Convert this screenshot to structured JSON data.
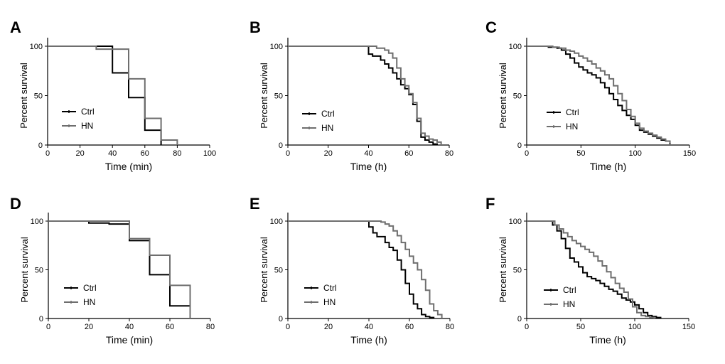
{
  "colors": {
    "ctrl": "#000000",
    "hn": "#6e6e6e",
    "axis": "#000000"
  },
  "chart_data": [
    {
      "type": "line",
      "subtype": "kaplan-meier-step",
      "panel": "A",
      "xlabel": "Time (min)",
      "ylabel": "Percent survival",
      "xlim": [
        0,
        100
      ],
      "ylim": [
        0,
        100
      ],
      "xticks": [
        0,
        20,
        40,
        60,
        80,
        100
      ],
      "yticks": [
        0,
        50,
        100
      ],
      "legend": [
        "Ctrl",
        "HN"
      ],
      "legend_position": "lower-left",
      "series": [
        {
          "name": "Ctrl",
          "x": [
            0,
            40,
            50,
            60,
            70
          ],
          "y": [
            100,
            73,
            48,
            15,
            0
          ]
        },
        {
          "name": "HN",
          "x": [
            0,
            30,
            50,
            60,
            70,
            80
          ],
          "y": [
            100,
            97,
            67,
            27,
            5,
            0
          ]
        }
      ]
    },
    {
      "type": "line",
      "subtype": "kaplan-meier-step",
      "panel": "B",
      "xlabel": "Time (h)",
      "ylabel": "Percent survival",
      "xlim": [
        0,
        80
      ],
      "ylim": [
        0,
        100
      ],
      "xticks": [
        0,
        20,
        40,
        60,
        80
      ],
      "yticks": [
        0,
        50,
        100
      ],
      "legend": [
        "Ctrl",
        "HN"
      ],
      "legend_position": "lower-left",
      "series": [
        {
          "name": "Ctrl",
          "x": [
            0,
            40,
            42,
            46,
            48,
            50,
            52,
            54,
            56,
            58,
            60,
            62,
            64,
            66,
            68,
            70,
            72,
            74
          ],
          "y": [
            100,
            92,
            90,
            86,
            82,
            78,
            73,
            67,
            61,
            57,
            51,
            41,
            24,
            8,
            5,
            3,
            1,
            0
          ]
        },
        {
          "name": "HN",
          "x": [
            0,
            44,
            48,
            50,
            52,
            54,
            56,
            58,
            60,
            62,
            64,
            66,
            68,
            70,
            72,
            74,
            76
          ],
          "y": [
            100,
            98,
            96,
            93,
            88,
            78,
            67,
            60,
            52,
            43,
            27,
            12,
            9,
            6,
            5,
            3,
            0
          ]
        }
      ]
    },
    {
      "type": "line",
      "subtype": "kaplan-meier-step",
      "panel": "C",
      "xlabel": "Time (h)",
      "ylabel": "Percent survival",
      "xlim": [
        0,
        150
      ],
      "ylim": [
        0,
        100
      ],
      "xticks": [
        0,
        50,
        100,
        150
      ],
      "yticks": [
        0,
        50,
        100
      ],
      "legend": [
        "Ctrl",
        "HN"
      ],
      "legend_position": "lower-left",
      "series": [
        {
          "name": "Ctrl",
          "x": [
            0,
            20,
            28,
            32,
            36,
            40,
            44,
            48,
            52,
            56,
            60,
            64,
            68,
            72,
            76,
            80,
            84,
            88,
            92,
            96,
            100,
            104,
            108,
            112,
            116,
            120,
            124,
            128,
            132
          ],
          "y": [
            100,
            99,
            98,
            96,
            92,
            88,
            83,
            79,
            76,
            73,
            71,
            68,
            63,
            58,
            52,
            46,
            40,
            35,
            30,
            26,
            20,
            15,
            13,
            11,
            9,
            7,
            5,
            4,
            1
          ]
        },
        {
          "name": "HN",
          "x": [
            0,
            24,
            30,
            36,
            40,
            44,
            48,
            52,
            56,
            60,
            64,
            68,
            72,
            76,
            80,
            84,
            88,
            92,
            96,
            100,
            104,
            108,
            112,
            116,
            120,
            124,
            128,
            132
          ],
          "y": [
            100,
            99,
            98,
            96,
            95,
            93,
            90,
            88,
            85,
            82,
            78,
            75,
            71,
            67,
            60,
            52,
            45,
            36,
            29,
            22,
            17,
            14,
            12,
            10,
            8,
            6,
            4,
            2
          ]
        }
      ]
    },
    {
      "type": "line",
      "subtype": "kaplan-meier-step",
      "panel": "D",
      "xlabel": "Time (min)",
      "ylabel": "Percent survival",
      "xlim": [
        0,
        80
      ],
      "ylim": [
        0,
        100
      ],
      "xticks": [
        0,
        20,
        40,
        60,
        80
      ],
      "yticks": [
        0,
        50,
        100
      ],
      "legend": [
        "Ctrl",
        "HN"
      ],
      "legend_position": "lower-left",
      "series": [
        {
          "name": "Ctrl",
          "x": [
            0,
            20,
            30,
            40,
            50,
            60,
            70
          ],
          "y": [
            100,
            98,
            97,
            80,
            45,
            13,
            0
          ]
        },
        {
          "name": "HN",
          "x": [
            0,
            40,
            50,
            60,
            70
          ],
          "y": [
            100,
            82,
            65,
            34,
            0
          ]
        }
      ]
    },
    {
      "type": "line",
      "subtype": "kaplan-meier-step",
      "panel": "E",
      "xlabel": "Time (h)",
      "ylabel": "Percent survival",
      "xlim": [
        0,
        80
      ],
      "ylim": [
        0,
        100
      ],
      "xticks": [
        0,
        20,
        40,
        60,
        80
      ],
      "yticks": [
        0,
        50,
        100
      ],
      "legend": [
        "Ctrl",
        "HN"
      ],
      "legend_position": "lower-left",
      "series": [
        {
          "name": "Ctrl",
          "x": [
            0,
            40,
            42,
            44,
            48,
            50,
            52,
            54,
            56,
            58,
            60,
            62,
            64,
            66,
            68,
            70,
            72
          ],
          "y": [
            100,
            94,
            88,
            84,
            78,
            73,
            70,
            60,
            50,
            36,
            25,
            15,
            10,
            4,
            2,
            1,
            0
          ]
        },
        {
          "name": "HN",
          "x": [
            0,
            46,
            48,
            50,
            52,
            54,
            56,
            58,
            60,
            62,
            64,
            66,
            68,
            70,
            72,
            74,
            76
          ],
          "y": [
            100,
            99,
            97,
            95,
            90,
            85,
            78,
            71,
            64,
            57,
            50,
            40,
            29,
            15,
            8,
            4,
            0
          ]
        }
      ]
    },
    {
      "type": "line",
      "subtype": "kaplan-meier-step",
      "panel": "F",
      "xlabel": "Time (h)",
      "ylabel": "Percent survival",
      "xlim": [
        0,
        150
      ],
      "ylim": [
        0,
        100
      ],
      "xticks": [
        0,
        50,
        100,
        150
      ],
      "yticks": [
        0,
        50,
        100
      ],
      "legend": [
        "Ctrl",
        "HN"
      ],
      "legend_position": "lower-left",
      "series": [
        {
          "name": "Ctrl",
          "x": [
            0,
            24,
            28,
            32,
            36,
            40,
            44,
            48,
            52,
            56,
            60,
            64,
            68,
            72,
            76,
            80,
            84,
            88,
            92,
            96,
            100,
            104,
            108,
            112,
            116,
            120,
            124
          ],
          "y": [
            100,
            96,
            90,
            82,
            72,
            62,
            58,
            53,
            47,
            43,
            41,
            39,
            36,
            33,
            30,
            28,
            25,
            21,
            19,
            17,
            14,
            10,
            6,
            3,
            2,
            1,
            0
          ]
        },
        {
          "name": "HN",
          "x": [
            0,
            26,
            30,
            34,
            38,
            42,
            46,
            50,
            54,
            58,
            62,
            66,
            70,
            74,
            78,
            82,
            86,
            90,
            94,
            98,
            102,
            106,
            110,
            114,
            118
          ],
          "y": [
            100,
            96,
            92,
            88,
            84,
            80,
            77,
            74,
            71,
            68,
            64,
            59,
            54,
            48,
            42,
            36,
            31,
            27,
            20,
            12,
            6,
            3,
            2,
            1,
            0
          ]
        }
      ]
    }
  ]
}
